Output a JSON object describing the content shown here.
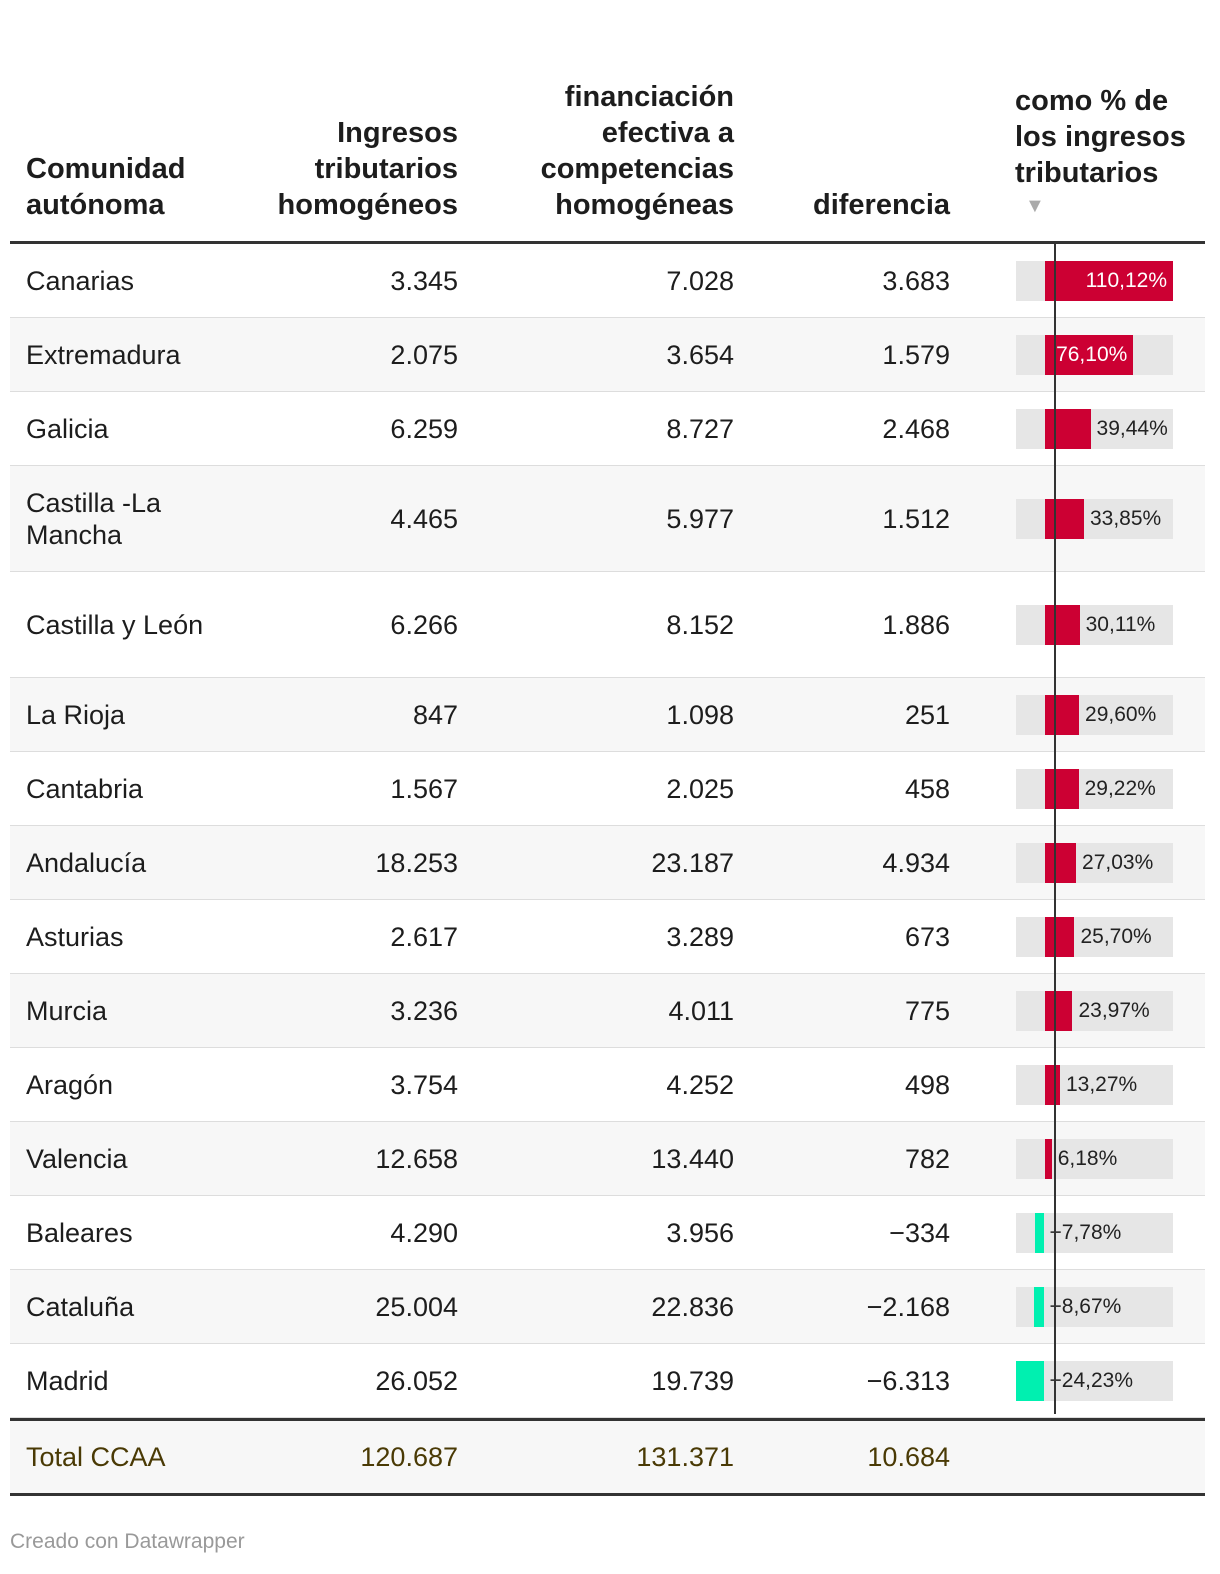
{
  "table": {
    "headers": {
      "region": "Comunidad autónoma",
      "ingresos": "Ingresos tributarios homogéneos",
      "financiacion": "financiación efectiva a competencias homogéneas",
      "diferencia": "diferencia",
      "porcentaje": "como % de los ingresos tributarios",
      "sort_indicator": "▼"
    },
    "total": {
      "label": "Total CCAA",
      "ingresos": "120.687",
      "financiacion": "131.371",
      "diferencia": "10.684"
    }
  },
  "chart_data": {
    "type": "table",
    "columns": [
      "Comunidad autónoma",
      "Ingresos tributarios homogéneos",
      "financiación efectiva a competencias homogéneas",
      "diferencia",
      "como % de los ingresos tributarios"
    ],
    "bar_column_range": [
      -24.23,
      110.12
    ],
    "rows": [
      {
        "region": "Canarias",
        "ingresos": "3.345",
        "financiacion": "7.028",
        "diferencia": "3.683",
        "pct": 110.12,
        "pct_label": "110,12%"
      },
      {
        "region": "Extremadura",
        "ingresos": "2.075",
        "financiacion": "3.654",
        "diferencia": "1.579",
        "pct": 76.1,
        "pct_label": "76,10%"
      },
      {
        "region": "Galicia",
        "ingresos": "6.259",
        "financiacion": "8.727",
        "diferencia": "2.468",
        "pct": 39.44,
        "pct_label": "39,44%"
      },
      {
        "region": "Castilla -La Mancha",
        "ingresos": "4.465",
        "financiacion": "5.977",
        "diferencia": "1.512",
        "pct": 33.85,
        "pct_label": "33,85%"
      },
      {
        "region": "Castilla y León",
        "ingresos": "6.266",
        "financiacion": "8.152",
        "diferencia": "1.886",
        "pct": 30.11,
        "pct_label": "30,11%"
      },
      {
        "region": "La Rioja",
        "ingresos": "847",
        "financiacion": "1.098",
        "diferencia": "251",
        "pct": 29.6,
        "pct_label": "29,60%"
      },
      {
        "region": "Cantabria",
        "ingresos": "1.567",
        "financiacion": "2.025",
        "diferencia": "458",
        "pct": 29.22,
        "pct_label": "29,22%"
      },
      {
        "region": "Andalucía",
        "ingresos": "18.253",
        "financiacion": "23.187",
        "diferencia": "4.934",
        "pct": 27.03,
        "pct_label": "27,03%"
      },
      {
        "region": "Asturias",
        "ingresos": "2.617",
        "financiacion": "3.289",
        "diferencia": "673",
        "pct": 25.7,
        "pct_label": "25,70%"
      },
      {
        "region": "Murcia",
        "ingresos": "3.236",
        "financiacion": "4.011",
        "diferencia": "775",
        "pct": 23.97,
        "pct_label": "23,97%"
      },
      {
        "region": "Aragón",
        "ingresos": "3.754",
        "financiacion": "4.252",
        "diferencia": "498",
        "pct": 13.27,
        "pct_label": "13,27%"
      },
      {
        "region": "Valencia",
        "ingresos": "12.658",
        "financiacion": "13.440",
        "diferencia": "782",
        "pct": 6.18,
        "pct_label": "6,18%"
      },
      {
        "region": "Baleares",
        "ingresos": "4.290",
        "financiacion": "3.956",
        "diferencia": "−334",
        "pct": -7.78,
        "pct_label": "−7,78%"
      },
      {
        "region": "Cataluña",
        "ingresos": "25.004",
        "financiacion": "22.836",
        "diferencia": "−2.168",
        "pct": -8.67,
        "pct_label": "−8,67%"
      },
      {
        "region": "Madrid",
        "ingresos": "26.052",
        "financiacion": "19.739",
        "diferencia": "−6.313",
        "pct": -24.23,
        "pct_label": "−24,23%"
      }
    ]
  },
  "colors": {
    "positive": "#cc0033",
    "negative": "#00f0b0",
    "track": "#e6e6e6"
  },
  "footer": {
    "credit": "Creado con Datawrapper"
  }
}
